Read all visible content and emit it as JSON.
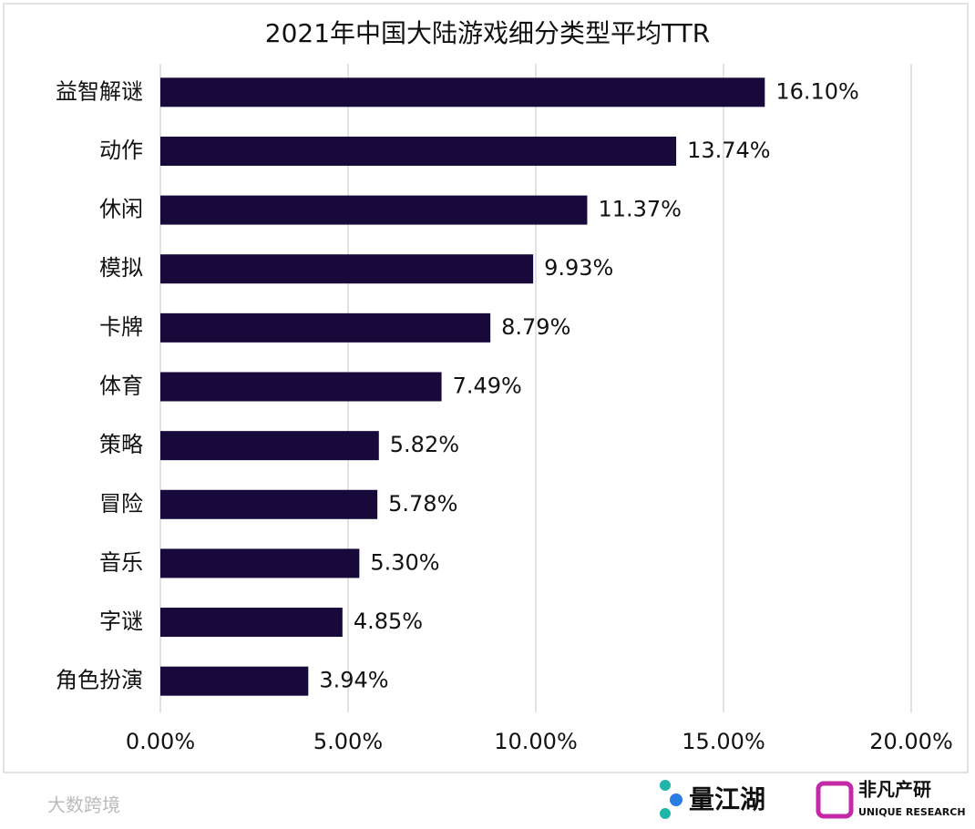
{
  "chart_data": {
    "type": "bar",
    "orientation": "horizontal",
    "title": "2021年中国大陆游戏细分类型平均TTR",
    "categories": [
      "益智解谜",
      "动作",
      "休闲",
      "模拟",
      "卡牌",
      "体育",
      "策略",
      "冒险",
      "音乐",
      "字谜",
      "角色扮演"
    ],
    "values": [
      16.1,
      13.74,
      11.37,
      9.93,
      8.79,
      7.49,
      5.82,
      5.78,
      5.3,
      4.85,
      3.94
    ],
    "value_labels": [
      "16.10%",
      "13.74%",
      "11.37%",
      "9.93%",
      "8.79%",
      "7.49%",
      "5.82%",
      "5.78%",
      "5.30%",
      "4.85%",
      "3.94%"
    ],
    "color": "#170a3a",
    "xlim": [
      0,
      20
    ],
    "xticks": [
      {
        "value": 0,
        "label": "0.00%"
      },
      {
        "value": 5,
        "label": "5.00%"
      },
      {
        "value": 10,
        "label": "10.00%"
      },
      {
        "value": 15,
        "label": "15.00%"
      },
      {
        "value": 20,
        "label": "20.00%"
      }
    ],
    "grid": true
  },
  "footer": {
    "watermark": "大数跨境",
    "logo1": "量江湖",
    "logo2": "非凡产研",
    "logo2_sub": "UNIQUE RESEARCH"
  }
}
